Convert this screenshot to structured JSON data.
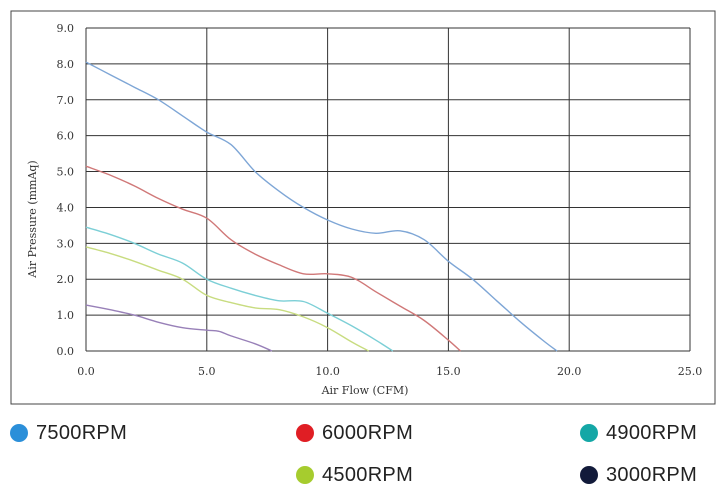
{
  "chart_data": {
    "type": "line",
    "xlabel": "Air Flow (CFM)",
    "ylabel": "Air Pressure (mmAq)",
    "xlim": [
      0,
      25
    ],
    "ylim": [
      0,
      9
    ],
    "xticks": [
      0,
      5,
      10,
      15,
      20,
      25
    ],
    "yticks": [
      0,
      1,
      2,
      3,
      4,
      5,
      6,
      7,
      8,
      9
    ],
    "xtick_labels": [
      "0.0",
      "5.0",
      "10.0",
      "15.0",
      "20.0",
      "25.0"
    ],
    "ytick_labels": [
      "0.0",
      "1.0",
      "2.0",
      "3.0",
      "4.0",
      "5.0",
      "6.0",
      "7.0",
      "8.0",
      "9.0"
    ],
    "grid": true,
    "legend_position": "bottom",
    "series": [
      {
        "name": "7500RPM",
        "line_color": "#7ea6d6",
        "marker_color": "#2b8fd9",
        "x": [
          0,
          1,
          2,
          3,
          4,
          5,
          6,
          7,
          8,
          9,
          10,
          11,
          12,
          13,
          14,
          15,
          16,
          17,
          18,
          19,
          19.5
        ],
        "y": [
          8.05,
          7.7,
          7.35,
          7.0,
          6.55,
          6.1,
          5.75,
          5.0,
          4.45,
          4.0,
          3.65,
          3.4,
          3.28,
          3.35,
          3.1,
          2.5,
          2.0,
          1.4,
          0.8,
          0.25,
          0.0
        ]
      },
      {
        "name": "6000RPM",
        "line_color": "#d07878",
        "marker_color": "#e01e24",
        "x": [
          0,
          1,
          2,
          3,
          4,
          5,
          6,
          7,
          8,
          9,
          10,
          11,
          12,
          13,
          14,
          15,
          15.5
        ],
        "y": [
          5.15,
          4.9,
          4.6,
          4.25,
          3.95,
          3.7,
          3.1,
          2.7,
          2.4,
          2.15,
          2.15,
          2.05,
          1.65,
          1.25,
          0.85,
          0.3,
          0.0
        ]
      },
      {
        "name": "4900RPM",
        "line_color": "#7ccfd6",
        "marker_color": "#14a7a6",
        "x": [
          0,
          1,
          2,
          3,
          4,
          5,
          6,
          7,
          8,
          9,
          10,
          11,
          12,
          12.7
        ],
        "y": [
          3.45,
          3.25,
          3.0,
          2.7,
          2.45,
          2.0,
          1.75,
          1.55,
          1.4,
          1.38,
          1.05,
          0.7,
          0.3,
          0.0
        ]
      },
      {
        "name": "4500RPM",
        "line_color": "#c8dc80",
        "marker_color": "#a6cc2e",
        "x": [
          0,
          1,
          2,
          3,
          4,
          5,
          6,
          7,
          8,
          9,
          10,
          11,
          11.7
        ],
        "y": [
          2.9,
          2.72,
          2.5,
          2.25,
          2.0,
          1.55,
          1.35,
          1.2,
          1.15,
          0.95,
          0.65,
          0.25,
          0.0
        ]
      },
      {
        "name": "3000RPM",
        "line_color": "#9880b8",
        "marker_color": "#121a3a",
        "x": [
          0,
          1,
          2,
          3,
          4,
          5,
          5.5,
          6,
          7,
          7.7
        ],
        "y": [
          1.28,
          1.15,
          1.0,
          0.8,
          0.65,
          0.58,
          0.55,
          0.42,
          0.2,
          0.0
        ]
      }
    ]
  }
}
